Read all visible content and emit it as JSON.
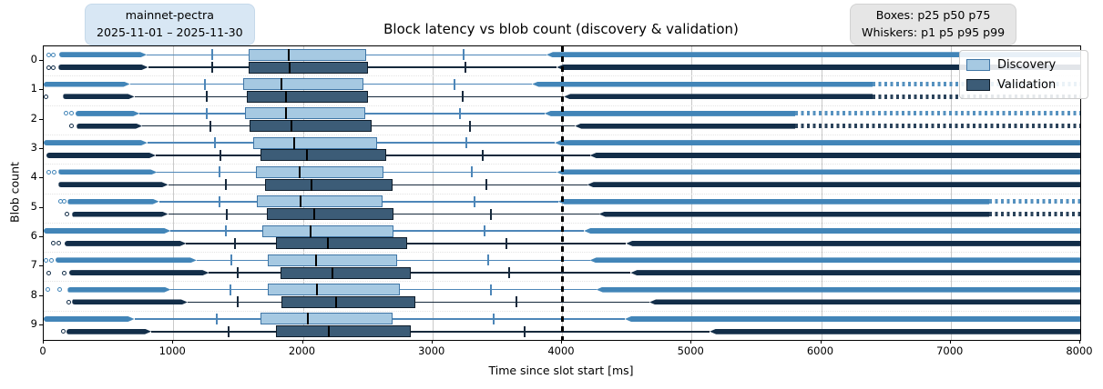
{
  "header": {
    "run_badge_line1": "mainnet-pectra",
    "run_badge_line2": "2025-11-01 – 2025-11-30",
    "percentile_badge_line1": "Boxes: p25 p50 p75",
    "percentile_badge_line2": "Whiskers: p1 p5 p95 p99"
  },
  "colors": {
    "discovery_fill": "#a6c9e2",
    "discovery_edge": "#4076a6",
    "discovery_flier": "#4285b8",
    "validation_fill": "#3c5c77",
    "validation_edge": "#0e1c2a",
    "validation_flier": "#132e49",
    "median": "#000000",
    "gridline": "#c9c9c9",
    "refline": "#000000",
    "run_badge_bg": "#d8e7f4",
    "percentile_badge_bg": "#e6e6e6"
  },
  "chart_data": {
    "type": "boxplot",
    "orientation": "horizontal",
    "title": "Block latency vs blob count (discovery & validation)",
    "xlabel": "Time since slot start [ms]",
    "ylabel": "Blob count",
    "xlim": [
      0,
      8000
    ],
    "xticks": [
      0,
      1000,
      2000,
      3000,
      4000,
      5000,
      6000,
      7000,
      8000
    ],
    "categories": [
      "0",
      "1",
      "2",
      "3",
      "4",
      "5",
      "6",
      "7",
      "8",
      "9"
    ],
    "refline_x": 4000,
    "grid": "vertical",
    "legend_position": "upper right",
    "box_stats": "p25 p50 p75",
    "whisker_stats": "p1 p5 p95 p99",
    "series": [
      {
        "name": "Discovery",
        "key": "discovery"
      },
      {
        "name": "Validation",
        "key": "validation"
      }
    ],
    "rows": [
      {
        "blob_count": "0",
        "discovery": {
          "circles": [
            40,
            75
          ],
          "low_start": 120,
          "p1": 795,
          "p5": 1300,
          "p25": 1580,
          "p50": 1890,
          "p75": 2490,
          "p95": 3240,
          "p99": 3880,
          "high_end": 8000,
          "sparse_from": null
        },
        "validation": {
          "circles": [
            40,
            75
          ],
          "low_start": 115,
          "p1": 805,
          "p5": 1300,
          "p25": 1580,
          "p50": 1900,
          "p75": 2500,
          "p95": 3255,
          "p99": 3960,
          "high_end": 8000,
          "sparse_from": null
        }
      },
      {
        "blob_count": "1",
        "discovery": {
          "circles": [],
          "low_start": 0,
          "p1": 665,
          "p5": 1245,
          "p25": 1540,
          "p50": 1835,
          "p75": 2465,
          "p95": 3170,
          "p99": 3770,
          "high_end": 8000,
          "sparse_from": 6400
        },
        "validation": {
          "circles": [
            15
          ],
          "low_start": 150,
          "p1": 700,
          "p5": 1260,
          "p25": 1570,
          "p50": 1870,
          "p75": 2500,
          "p95": 3235,
          "p99": 4015,
          "high_end": 8000,
          "sparse_from": 6400
        }
      },
      {
        "blob_count": "2",
        "discovery": {
          "circles": [
            175,
            215
          ],
          "low_start": 245,
          "p1": 740,
          "p5": 1260,
          "p25": 1555,
          "p50": 1870,
          "p75": 2485,
          "p95": 3210,
          "p99": 3865,
          "high_end": 8000,
          "sparse_from": 5800
        },
        "validation": {
          "circles": [
            215
          ],
          "low_start": 255,
          "p1": 760,
          "p5": 1285,
          "p25": 1590,
          "p50": 1910,
          "p75": 2530,
          "p95": 3290,
          "p99": 4100,
          "high_end": 8000,
          "sparse_from": 5800
        }
      },
      {
        "blob_count": "3",
        "discovery": {
          "circles": [],
          "low_start": 0,
          "p1": 800,
          "p5": 1320,
          "p25": 1615,
          "p50": 1935,
          "p75": 2570,
          "p95": 3265,
          "p99": 3945,
          "high_end": 8000,
          "sparse_from": null
        },
        "validation": {
          "circles": [],
          "low_start": 20,
          "p1": 865,
          "p5": 1365,
          "p25": 1675,
          "p50": 2030,
          "p75": 2645,
          "p95": 3390,
          "p99": 4215,
          "high_end": 8000,
          "sparse_from": null
        }
      },
      {
        "blob_count": "4",
        "discovery": {
          "circles": [
            42,
            80
          ],
          "low_start": 115,
          "p1": 875,
          "p5": 1355,
          "p25": 1640,
          "p50": 1975,
          "p75": 2620,
          "p95": 3305,
          "p99": 3960,
          "high_end": 8000,
          "sparse_from": null
        },
        "validation": {
          "circles": [],
          "low_start": 115,
          "p1": 960,
          "p5": 1405,
          "p25": 1705,
          "p50": 2065,
          "p75": 2690,
          "p95": 3420,
          "p99": 4195,
          "high_end": 8000,
          "sparse_from": null
        }
      },
      {
        "blob_count": "5",
        "discovery": {
          "circles": [
            127,
            160
          ],
          "low_start": 185,
          "p1": 890,
          "p5": 1355,
          "p25": 1645,
          "p50": 1980,
          "p75": 2615,
          "p95": 3325,
          "p99": 3970,
          "high_end": 8000,
          "sparse_from": 7300
        },
        "validation": {
          "circles": [
            178
          ],
          "low_start": 220,
          "p1": 960,
          "p5": 1415,
          "p25": 1720,
          "p50": 2090,
          "p75": 2700,
          "p95": 3455,
          "p99": 4285,
          "high_end": 8000,
          "sparse_from": 7300
        }
      },
      {
        "blob_count": "6",
        "discovery": {
          "circles": [],
          "low_start": 0,
          "p1": 980,
          "p5": 1405,
          "p25": 1690,
          "p50": 2060,
          "p75": 2700,
          "p95": 3405,
          "p99": 4170,
          "high_end": 8000,
          "sparse_from": null
        },
        "validation": {
          "circles": [
            77,
            115
          ],
          "low_start": 160,
          "p1": 1100,
          "p5": 1475,
          "p25": 1795,
          "p50": 2190,
          "p75": 2805,
          "p95": 3570,
          "p99": 4495,
          "high_end": 8000,
          "sparse_from": null
        }
      },
      {
        "blob_count": "7",
        "discovery": {
          "circles": [
            20,
            60
          ],
          "low_start": 90,
          "p1": 1180,
          "p5": 1445,
          "p25": 1730,
          "p50": 2100,
          "p75": 2725,
          "p95": 3430,
          "p99": 4215,
          "high_end": 8000,
          "sparse_from": null
        },
        "validation": {
          "circles": [
            37,
            155
          ],
          "low_start": 195,
          "p1": 1275,
          "p5": 1500,
          "p25": 1825,
          "p50": 2225,
          "p75": 2835,
          "p95": 3595,
          "p99": 4530,
          "high_end": 8000,
          "sparse_from": null
        }
      },
      {
        "blob_count": "8",
        "discovery": {
          "circles": [
            35,
            120
          ],
          "low_start": 185,
          "p1": 980,
          "p5": 1440,
          "p25": 1730,
          "p50": 2110,
          "p75": 2750,
          "p95": 3455,
          "p99": 4265,
          "high_end": 8000,
          "sparse_from": null
        },
        "validation": {
          "circles": [
            195
          ],
          "low_start": 220,
          "p1": 1110,
          "p5": 1500,
          "p25": 1835,
          "p50": 2255,
          "p75": 2870,
          "p95": 3650,
          "p99": 4675,
          "high_end": 8000,
          "sparse_from": null
        }
      },
      {
        "blob_count": "9",
        "discovery": {
          "circles": [],
          "low_start": 0,
          "p1": 700,
          "p5": 1335,
          "p25": 1675,
          "p50": 2040,
          "p75": 2690,
          "p95": 3475,
          "p99": 4485,
          "high_end": 8000,
          "sparse_from": null
        },
        "validation": {
          "circles": [
            150
          ],
          "low_start": 175,
          "p1": 830,
          "p5": 1425,
          "p25": 1790,
          "p50": 2200,
          "p75": 2835,
          "p95": 3710,
          "p99": 5140,
          "high_end": 8000,
          "sparse_from": null
        }
      }
    ]
  }
}
